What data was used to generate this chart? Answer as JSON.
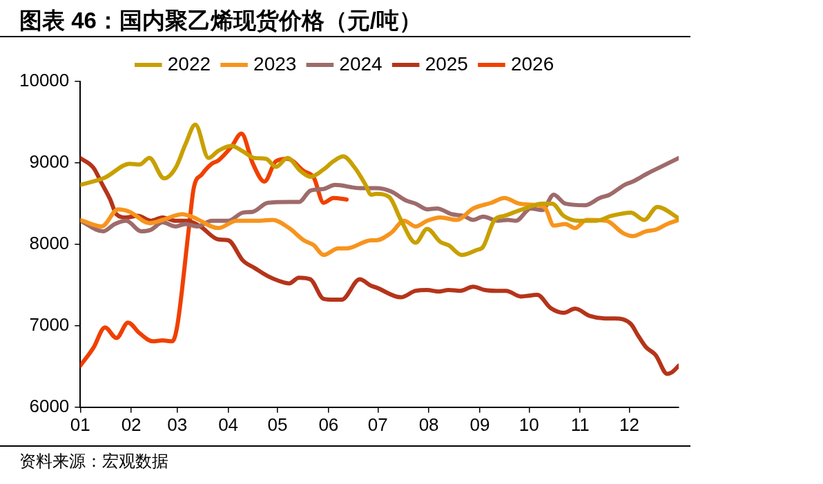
{
  "chart_data": {
    "type": "line",
    "title": "图表 46：国内聚乙烯现货价格（元/吨）",
    "annotations": [
      "资料来源：宏观数据"
    ],
    "xlim": [
      "--01-01",
      "--12-31"
    ],
    "xticks": [
      {
        "value": "--01-01",
        "label": "01"
      },
      {
        "value": "--02-01",
        "label": "02"
      },
      {
        "value": "--03-01",
        "label": "03"
      },
      {
        "value": "--04-01",
        "label": "04"
      },
      {
        "value": "--05-01",
        "label": "05"
      },
      {
        "value": "--06-01",
        "label": "06"
      },
      {
        "value": "--07-01",
        "label": "07"
      },
      {
        "value": "--08-01",
        "label": "08"
      },
      {
        "value": "--09-01",
        "label": "09"
      },
      {
        "value": "--10-01",
        "label": "10"
      },
      {
        "value": "--11-01",
        "label": "11"
      },
      {
        "value": "--12-01",
        "label": "12"
      }
    ],
    "ylim": [
      6000,
      10000
    ],
    "yticks": [
      6000,
      7000,
      8000,
      9000,
      10000
    ],
    "grid": false,
    "legend": "top",
    "marker": "none",
    "line_style": "solid",
    "series": [
      {
        "name": "2022",
        "color": "#c8a000",
        "x": [
          "--01-01",
          "--01-16",
          "--01-31",
          "--02-06",
          "--02-12",
          "--02-21",
          "--02-28",
          "--03-06",
          "--03-12",
          "--03-20",
          "--03-26",
          "--04-03",
          "--04-10",
          "--04-17",
          "--04-24",
          "--04-30",
          "--05-07",
          "--05-15",
          "--05-21",
          "--05-29",
          "--06-04",
          "--06-10",
          "--06-17",
          "--06-23",
          "--06-27",
          "--06-30",
          "--07-08",
          "--07-15",
          "--07-24",
          "--07-31",
          "--08-08",
          "--08-13",
          "--08-21",
          "--08-30",
          "--09-03",
          "--09-10",
          "--09-16",
          "--09-27",
          "--10-09",
          "--10-15",
          "--10-22",
          "--10-31",
          "--11-11",
          "--11-20",
          "--12-02",
          "--12-10",
          "--12-18",
          "--12-31"
        ],
        "values": [
          8730,
          8820,
          8990,
          8980,
          9060,
          8810,
          8940,
          9230,
          9470,
          9060,
          9150,
          9210,
          9140,
          9060,
          9050,
          8950,
          9060,
          8900,
          8830,
          8920,
          9020,
          9080,
          8940,
          8750,
          8610,
          8620,
          8580,
          8300,
          8020,
          8190,
          8030,
          7990,
          7870,
          7930,
          7970,
          8300,
          8350,
          8430,
          8500,
          8500,
          8350,
          8290,
          8290,
          8350,
          8390,
          8300,
          8460,
          8320
        ]
      },
      {
        "name": "2023",
        "color": "#f7941d",
        "x": [
          "--01-01",
          "--01-14",
          "--01-24",
          "--01-31",
          "--02-12",
          "--02-20",
          "--03-04",
          "--03-11",
          "--03-26",
          "--04-06",
          "--04-20",
          "--04-28",
          "--05-08",
          "--05-17",
          "--05-23",
          "--05-29",
          "--06-07",
          "--06-12",
          "--06-27",
          "--06-30",
          "--07-09",
          "--07-17",
          "--07-24",
          "--07-31",
          "--08-08",
          "--08-18",
          "--08-28",
          "--09-08",
          "--09-16",
          "--09-25",
          "--10-06",
          "--10-11",
          "--10-16",
          "--10-23",
          "--10-29",
          "--11-05",
          "--11-17",
          "--11-27",
          "--12-03",
          "--12-11",
          "--12-17",
          "--12-24",
          "--12-31"
        ],
        "values": [
          8300,
          8220,
          8430,
          8400,
          8260,
          8300,
          8370,
          8330,
          8200,
          8290,
          8290,
          8300,
          8200,
          8050,
          7990,
          7870,
          7950,
          7950,
          8050,
          8050,
          8140,
          8290,
          8220,
          8290,
          8330,
          8300,
          8440,
          8510,
          8570,
          8500,
          8480,
          8440,
          8230,
          8250,
          8200,
          8300,
          8290,
          8140,
          8100,
          8160,
          8180,
          8250,
          8300
        ]
      },
      {
        "name": "2024",
        "color": "#9e6b6b",
        "x": [
          "--01-01",
          "--01-15",
          "--01-22",
          "--01-29",
          "--02-07",
          "--02-13",
          "--02-20",
          "--02-28",
          "--03-06",
          "--03-13",
          "--03-22",
          "--04-01",
          "--04-10",
          "--04-16",
          "--04-25",
          "--05-08",
          "--05-14",
          "--05-21",
          "--05-29",
          "--06-05",
          "--06-20",
          "--06-30",
          "--07-09",
          "--07-18",
          "--07-24",
          "--07-31",
          "--08-06",
          "--08-15",
          "--08-22",
          "--08-28",
          "--09-03",
          "--09-12",
          "--09-18",
          "--09-23",
          "--10-02",
          "--10-09",
          "--10-16",
          "--10-23",
          "--11-04",
          "--11-13",
          "--11-19",
          "--11-28",
          "--12-03",
          "--12-12",
          "--12-21",
          "--12-31"
        ],
        "values": [
          8290,
          8160,
          8250,
          8290,
          8160,
          8180,
          8270,
          8220,
          8250,
          8220,
          8290,
          8290,
          8390,
          8400,
          8510,
          8520,
          8520,
          8660,
          8680,
          8730,
          8690,
          8690,
          8650,
          8540,
          8500,
          8430,
          8440,
          8370,
          8350,
          8300,
          8340,
          8290,
          8300,
          8290,
          8440,
          8420,
          8610,
          8500,
          8480,
          8570,
          8610,
          8730,
          8770,
          8870,
          8960,
          9060
        ]
      },
      {
        "name": "2025",
        "color": "#b5341a",
        "x": [
          "--01-01",
          "--01-09",
          "--01-14",
          "--01-19",
          "--01-23",
          "--01-29",
          "--02-05",
          "--02-13",
          "--02-20",
          "--02-28",
          "--03-07",
          "--03-15",
          "--03-26",
          "--04-01",
          "--04-10",
          "--04-17",
          "--04-25",
          "--05-02",
          "--05-08",
          "--05-14",
          "--05-21",
          "--05-29",
          "--06-04",
          "--06-09",
          "--06-20",
          "--06-27",
          "--06-30",
          "--07-15",
          "--07-24",
          "--07-31",
          "--08-07",
          "--08-13",
          "--08-20",
          "--08-28",
          "--09-04",
          "--09-11",
          "--09-17",
          "--09-26",
          "--10-06",
          "--10-14",
          "--10-22",
          "--10-29",
          "--11-07",
          "--11-16",
          "--11-22",
          "--12-02",
          "--12-06",
          "--12-11",
          "--12-17",
          "--12-24",
          "--12-27",
          "--12-31"
        ],
        "values": [
          9060,
          8940,
          8750,
          8560,
          8370,
          8330,
          8350,
          8290,
          8330,
          8290,
          8290,
          8220,
          8060,
          8050,
          7800,
          7710,
          7610,
          7550,
          7520,
          7590,
          7570,
          7330,
          7320,
          7320,
          7570,
          7490,
          7470,
          7350,
          7430,
          7440,
          7420,
          7440,
          7430,
          7480,
          7440,
          7430,
          7430,
          7360,
          7380,
          7220,
          7160,
          7210,
          7120,
          7090,
          7090,
          7020,
          6890,
          6740,
          6640,
          6410,
          6430,
          6510
        ]
      },
      {
        "name": "2026",
        "color": "#f04000",
        "x": [
          "--01-01",
          "--01-09",
          "--01-16",
          "--01-23",
          "--01-30",
          "--02-06",
          "--02-14",
          "--02-20",
          "--02-26",
          "--03-01",
          "--03-08",
          "--03-11",
          "--03-16",
          "--03-22",
          "--03-26",
          "--04-03",
          "--04-09",
          "--04-16",
          "--04-23",
          "--04-30",
          "--05-07",
          "--05-17",
          "--05-23",
          "--05-29",
          "--06-04",
          "--06-12"
        ],
        "values": [
          6510,
          6730,
          6980,
          6850,
          7040,
          6910,
          6810,
          6820,
          6810,
          7000,
          8190,
          8690,
          8860,
          8990,
          9030,
          9200,
          9360,
          8990,
          8770,
          9020,
          9050,
          8900,
          8820,
          8510,
          8570,
          8550
        ]
      }
    ]
  }
}
